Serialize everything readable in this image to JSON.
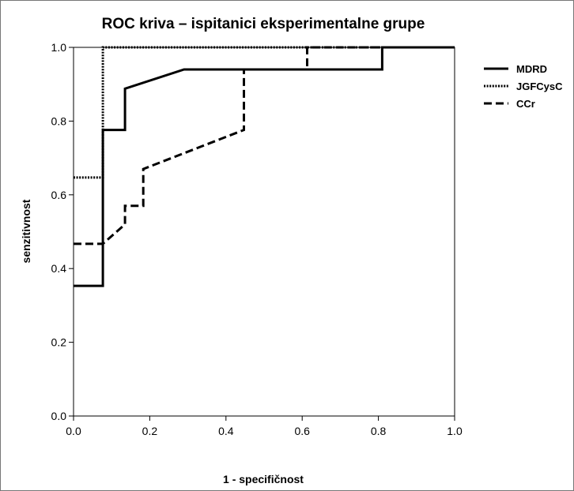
{
  "chart_data": {
    "type": "line",
    "title": "ROC kriva – ispitanici eksperimentalne grupe",
    "xlabel": "1 - specifičnost",
    "ylabel": "senzitivnost",
    "xlim": [
      0,
      1
    ],
    "ylim": [
      0,
      1
    ],
    "xticks": [
      "0.0",
      "0.2",
      "0.4",
      "0.6",
      "0.8",
      "1.0"
    ],
    "yticks": [
      "0.0",
      "0.2",
      "0.4",
      "0.6",
      "0.8",
      "1.0"
    ],
    "legend_position": "right",
    "grid": false,
    "series": [
      {
        "name": "MDRD",
        "style": "solid",
        "x": [
          0,
          0.077,
          0.077,
          0.077,
          0.135,
          0.135,
          0.29,
          0.81,
          0.81,
          1.0
        ],
        "y": [
          0.353,
          0.353,
          0.647,
          0.776,
          0.776,
          0.888,
          0.94,
          0.94,
          1.0,
          1.0
        ]
      },
      {
        "name": "JGFCysC",
        "style": "dotted",
        "x": [
          0,
          0.077,
          0.077,
          0.077,
          1.0
        ],
        "y": [
          0.647,
          0.647,
          0.776,
          1.0,
          1.0
        ]
      },
      {
        "name": "CCr",
        "style": "dashed",
        "x": [
          0,
          0.077,
          0.135,
          0.135,
          0.183,
          0.183,
          0.447,
          0.447,
          0.613,
          0.613,
          1.0
        ],
        "y": [
          0.467,
          0.467,
          0.52,
          0.57,
          0.57,
          0.67,
          0.776,
          0.94,
          0.94,
          1.0,
          1.0
        ]
      }
    ]
  }
}
